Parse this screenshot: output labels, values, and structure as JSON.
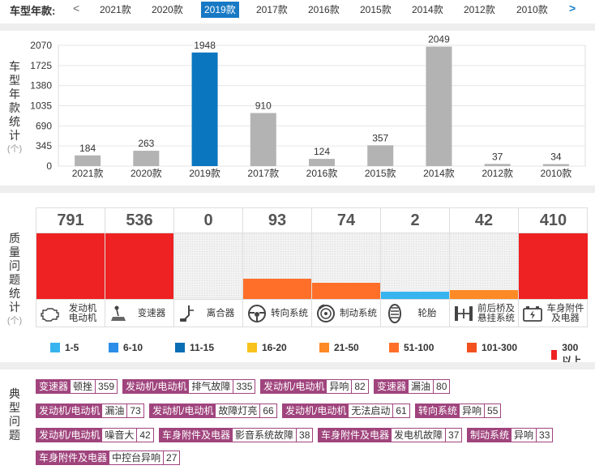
{
  "year_bar": {
    "label": "车型年款:",
    "prev_arrow": "<",
    "next_arrow": ">",
    "tabs": [
      "2021款",
      "2020款",
      "2019款",
      "2017款",
      "2016款",
      "2015款",
      "2014款",
      "2012款",
      "2010款"
    ],
    "active_index": 2
  },
  "chart_section": {
    "side_label": [
      "车",
      "型",
      "年",
      "款",
      "统",
      "计"
    ],
    "unit": "(个)"
  },
  "chart_data": {
    "type": "bar",
    "categories": [
      "2021款",
      "2020款",
      "2019款",
      "2017款",
      "2016款",
      "2015款",
      "2014款",
      "2012款",
      "2010款"
    ],
    "values": [
      184,
      263,
      1948,
      910,
      124,
      357,
      2049,
      37,
      34
    ],
    "highlight_index": 2,
    "yticks": [
      0,
      345,
      690,
      1035,
      1380,
      1725,
      2070
    ],
    "ylim": [
      0,
      2070
    ],
    "bar_color": "#b3b3b3",
    "highlight_color": "#0a76c0",
    "grid": true
  },
  "quality_section": {
    "side_label": [
      "质",
      "量",
      "问",
      "题",
      "统",
      "计"
    ],
    "unit": "(个)",
    "max_scale": 300,
    "items": [
      {
        "count": 791,
        "count_text": "791",
        "name": [
          "发动机",
          "电动机"
        ],
        "icon": "engine-icon",
        "color": "#ee2222"
      },
      {
        "count": 536,
        "count_text": "536",
        "name": [
          "变速器"
        ],
        "icon": "gear-shift-icon",
        "color": "#ee2222"
      },
      {
        "count": 0,
        "count_text": "0",
        "name": [
          "离合器"
        ],
        "icon": "clutch-pedal-icon",
        "color": "#cccccc"
      },
      {
        "count": 93,
        "count_text": "93",
        "name": [
          "转向系统"
        ],
        "icon": "steering-wheel-icon",
        "color": "#ff6f2a"
      },
      {
        "count": 74,
        "count_text": "74",
        "name": [
          "制动系统"
        ],
        "icon": "brake-disc-icon",
        "color": "#ff6f2a"
      },
      {
        "count": 2,
        "count_text": "2",
        "name": [
          "轮胎"
        ],
        "icon": "tire-icon",
        "color": "#37b4ef"
      },
      {
        "count": 42,
        "count_text": "42",
        "name": [
          "前后桥及",
          "悬挂系统"
        ],
        "icon": "axle-suspension-icon",
        "color": "#fd8a26"
      },
      {
        "count": 410,
        "count_text": "410",
        "name": [
          "车身附件",
          "及电器"
        ],
        "icon": "battery-icon",
        "color": "#ee2222"
      }
    ]
  },
  "legend": [
    {
      "label": "1-5",
      "color": "#37b4ef"
    },
    {
      "label": "6-10",
      "color": "#2a8de8"
    },
    {
      "label": "11-15",
      "color": "#0a6eb5"
    },
    {
      "label": "16-20",
      "color": "#f7c31c"
    },
    {
      "label": "21-50",
      "color": "#fd8a26"
    },
    {
      "label": "51-100",
      "color": "#ff6f2a"
    },
    {
      "label": "101-300",
      "color": "#f2501e"
    },
    {
      "label": "300以上",
      "color": "#ee2222"
    }
  ],
  "typical_section": {
    "side_label": [
      "典",
      "型",
      "问",
      "题"
    ],
    "tags": [
      {
        "category": "变速器",
        "issue": "顿挫",
        "count": "359"
      },
      {
        "category": "发动机/电动机",
        "issue": "排气故障",
        "count": "335"
      },
      {
        "category": "发动机/电动机",
        "issue": "异响",
        "count": "82"
      },
      {
        "category": "变速器",
        "issue": "漏油",
        "count": "80"
      },
      {
        "category": "发动机/电动机",
        "issue": "漏油",
        "count": "73"
      },
      {
        "category": "发动机/电动机",
        "issue": "故障灯亮",
        "count": "66"
      },
      {
        "category": "发动机/电动机",
        "issue": "无法启动",
        "count": "61"
      },
      {
        "category": "转向系统",
        "issue": "异响",
        "count": "55"
      },
      {
        "category": "发动机/电动机",
        "issue": "噪音大",
        "count": "42"
      },
      {
        "category": "车身附件及电器",
        "issue": "影音系统故障",
        "count": "38"
      },
      {
        "category": "车身附件及电器",
        "issue": "发电机故障",
        "count": "37"
      },
      {
        "category": "制动系统",
        "issue": "异响",
        "count": "33"
      },
      {
        "category": "车身附件及电器",
        "issue": "中控台异响",
        "count": "27"
      }
    ]
  }
}
